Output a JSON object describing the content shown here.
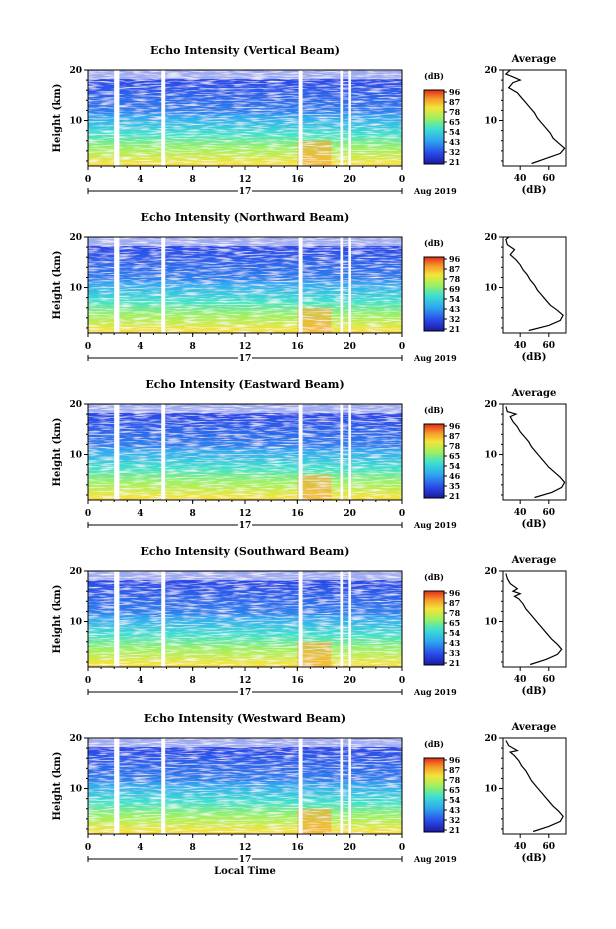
{
  "chart_data": [
    {
      "type": "heatmap",
      "title": "Echo Intensity (Vertical Beam)",
      "ylabel": "Height (km)",
      "xticks": [
        "0",
        "4",
        "8",
        "12",
        "16",
        "20",
        "0"
      ],
      "yticks": [
        "20",
        "10"
      ],
      "xlim": [
        0,
        24
      ],
      "ylim": [
        1,
        20
      ],
      "day_label": "17",
      "date_label": "Aug 2019",
      "colorbar": {
        "title": "(dB)",
        "ticks": [
          "96",
          "87",
          "78",
          "65",
          "54",
          "43",
          "32",
          "21"
        ]
      },
      "data_gaps_hours": [
        [
          2.0,
          2.4
        ],
        [
          5.6,
          5.9
        ],
        [
          16.1,
          16.4
        ],
        [
          19.3,
          19.5
        ],
        [
          19.9,
          20.1
        ]
      ],
      "average_profile": {
        "title": "Average",
        "xlabel": "(dB)",
        "xticks": [
          "40",
          "60"
        ],
        "yticks": [
          "20",
          "10"
        ],
        "points": [
          [
            48,
            1.5
          ],
          [
            58,
            2.5
          ],
          [
            68,
            3.5
          ],
          [
            71,
            4.5
          ],
          [
            67,
            5.5
          ],
          [
            63,
            6.5
          ],
          [
            61,
            7.5
          ],
          [
            58,
            8.5
          ],
          [
            55,
            9.5
          ],
          [
            52,
            10.5
          ],
          [
            50,
            11.5
          ],
          [
            47,
            12.5
          ],
          [
            44,
            13.5
          ],
          [
            41,
            14.5
          ],
          [
            38,
            15.5
          ],
          [
            32,
            16.5
          ],
          [
            35,
            17.5
          ],
          [
            40,
            18.0
          ],
          [
            36,
            18.5
          ],
          [
            30,
            19.2
          ],
          [
            33,
            20.0
          ]
        ]
      }
    },
    {
      "type": "heatmap",
      "title": "Echo Intensity (Northward Beam)",
      "ylabel": "Height (km)",
      "xticks": [
        "0",
        "4",
        "8",
        "12",
        "16",
        "20",
        "0"
      ],
      "yticks": [
        "20",
        "10"
      ],
      "xlim": [
        0,
        24
      ],
      "ylim": [
        1,
        20
      ],
      "day_label": "17",
      "date_label": "Aug 2019",
      "colorbar": {
        "title": "(dB)",
        "ticks": [
          "96",
          "87",
          "78",
          "69",
          "54",
          "43",
          "32",
          "21"
        ]
      },
      "data_gaps_hours": [
        [
          2.0,
          2.4
        ],
        [
          5.6,
          5.9
        ],
        [
          16.1,
          16.4
        ],
        [
          19.3,
          19.5
        ],
        [
          19.9,
          20.1
        ]
      ],
      "average_profile": {
        "title": "",
        "xlabel": "(dB)",
        "xticks": [
          "40",
          "60"
        ],
        "yticks": [
          "20",
          "10"
        ],
        "points": [
          [
            46,
            1.5
          ],
          [
            60,
            2.5
          ],
          [
            68,
            3.5
          ],
          [
            70,
            4.5
          ],
          [
            66,
            5.5
          ],
          [
            61,
            6.5
          ],
          [
            58,
            7.5
          ],
          [
            55,
            8.5
          ],
          [
            52,
            9.5
          ],
          [
            50,
            10.5
          ],
          [
            47,
            11.5
          ],
          [
            45,
            12.5
          ],
          [
            42,
            13.5
          ],
          [
            40,
            14.5
          ],
          [
            37,
            15.5
          ],
          [
            33,
            16.5
          ],
          [
            36,
            17.5
          ],
          [
            31,
            18.5
          ],
          [
            30,
            19.5
          ],
          [
            32,
            20.0
          ]
        ]
      }
    },
    {
      "type": "heatmap",
      "title": "Echo Intensity (Eastward Beam)",
      "ylabel": "Height (km)",
      "xticks": [
        "0",
        "4",
        "8",
        "12",
        "16",
        "20",
        "0"
      ],
      "yticks": [
        "20",
        "10"
      ],
      "xlim": [
        0,
        24
      ],
      "ylim": [
        1,
        20
      ],
      "day_label": "17",
      "date_label": "Aug 2019",
      "colorbar": {
        "title": "(dB)",
        "ticks": [
          "96",
          "87",
          "78",
          "65",
          "54",
          "46",
          "35",
          "21"
        ]
      },
      "data_gaps_hours": [
        [
          2.0,
          2.4
        ],
        [
          5.6,
          5.9
        ],
        [
          16.1,
          16.4
        ],
        [
          19.3,
          19.5
        ],
        [
          19.9,
          20.1
        ]
      ],
      "average_profile": {
        "title": "Average",
        "xlabel": "(dB)",
        "xticks": [
          "40",
          "60"
        ],
        "yticks": [
          "20",
          "10"
        ],
        "points": [
          [
            50,
            1.5
          ],
          [
            62,
            2.5
          ],
          [
            69,
            3.5
          ],
          [
            71,
            4.5
          ],
          [
            68,
            5.5
          ],
          [
            64,
            6.5
          ],
          [
            60,
            7.5
          ],
          [
            57,
            8.5
          ],
          [
            54,
            9.5
          ],
          [
            51,
            10.5
          ],
          [
            48,
            11.5
          ],
          [
            46,
            12.5
          ],
          [
            43,
            13.5
          ],
          [
            40,
            14.5
          ],
          [
            38,
            15.5
          ],
          [
            35,
            16.5
          ],
          [
            33,
            17.5
          ],
          [
            37,
            18.0
          ],
          [
            31,
            18.5
          ],
          [
            30,
            19.5
          ]
        ]
      }
    },
    {
      "type": "heatmap",
      "title": "Echo Intensity (Southward Beam)",
      "ylabel": "Height (km)",
      "xticks": [
        "0",
        "4",
        "8",
        "12",
        "16",
        "20",
        "0"
      ],
      "yticks": [
        "20",
        "10"
      ],
      "xlim": [
        0,
        24
      ],
      "ylim": [
        1,
        20
      ],
      "day_label": "17",
      "date_label": "Aug 2019",
      "colorbar": {
        "title": "(dB)",
        "ticks": [
          "96",
          "87",
          "78",
          "65",
          "54",
          "43",
          "33",
          "21"
        ]
      },
      "data_gaps_hours": [
        [
          2.0,
          2.4
        ],
        [
          5.6,
          5.9
        ],
        [
          16.1,
          16.4
        ],
        [
          19.3,
          19.5
        ],
        [
          19.9,
          20.1
        ]
      ],
      "average_profile": {
        "title": "Average",
        "xlabel": "(dB)",
        "xticks": [
          "40",
          "60"
        ],
        "yticks": [
          "20",
          "10"
        ],
        "points": [
          [
            47,
            1.5
          ],
          [
            58,
            2.5
          ],
          [
            66,
            3.5
          ],
          [
            69,
            4.5
          ],
          [
            66,
            5.5
          ],
          [
            62,
            6.5
          ],
          [
            59,
            7.5
          ],
          [
            56,
            8.5
          ],
          [
            53,
            9.5
          ],
          [
            50,
            10.5
          ],
          [
            47,
            11.5
          ],
          [
            44,
            12.5
          ],
          [
            42,
            13.5
          ],
          [
            39,
            14.5
          ],
          [
            36,
            15.0
          ],
          [
            40,
            15.5
          ],
          [
            35,
            16.0
          ],
          [
            38,
            16.5
          ],
          [
            33,
            17.5
          ],
          [
            31,
            18.5
          ],
          [
            30,
            19.5
          ]
        ]
      }
    },
    {
      "type": "heatmap",
      "title": "Echo Intensity (Westward Beam)",
      "ylabel": "Height (km)",
      "xlabel": "Local Time",
      "xticks": [
        "0",
        "4",
        "8",
        "12",
        "16",
        "20",
        "0"
      ],
      "yticks": [
        "20",
        "10"
      ],
      "xlim": [
        0,
        24
      ],
      "ylim": [
        1,
        20
      ],
      "day_label": "17",
      "date_label": "Aug 2019",
      "colorbar": {
        "title": "(dB)",
        "ticks": [
          "96",
          "87",
          "78",
          "65",
          "54",
          "43",
          "32",
          "21"
        ]
      },
      "data_gaps_hours": [
        [
          2.0,
          2.4
        ],
        [
          5.6,
          5.9
        ],
        [
          16.1,
          16.4
        ],
        [
          19.3,
          19.5
        ],
        [
          19.9,
          20.1
        ]
      ],
      "average_profile": {
        "title": "Average",
        "xlabel": "(dB)",
        "xticks": [
          "40",
          "60"
        ],
        "yticks": [
          "20",
          "10"
        ],
        "points": [
          [
            49,
            1.5
          ],
          [
            60,
            2.5
          ],
          [
            68,
            3.5
          ],
          [
            70,
            4.5
          ],
          [
            67,
            5.5
          ],
          [
            63,
            6.5
          ],
          [
            60,
            7.5
          ],
          [
            57,
            8.5
          ],
          [
            54,
            9.5
          ],
          [
            51,
            10.5
          ],
          [
            48,
            11.5
          ],
          [
            46,
            12.5
          ],
          [
            44,
            13.5
          ],
          [
            41,
            14.5
          ],
          [
            39,
            15.5
          ],
          [
            36,
            16.5
          ],
          [
            33,
            17.2
          ],
          [
            38,
            17.5
          ],
          [
            32,
            18.5
          ],
          [
            30,
            19.5
          ]
        ]
      }
    }
  ]
}
